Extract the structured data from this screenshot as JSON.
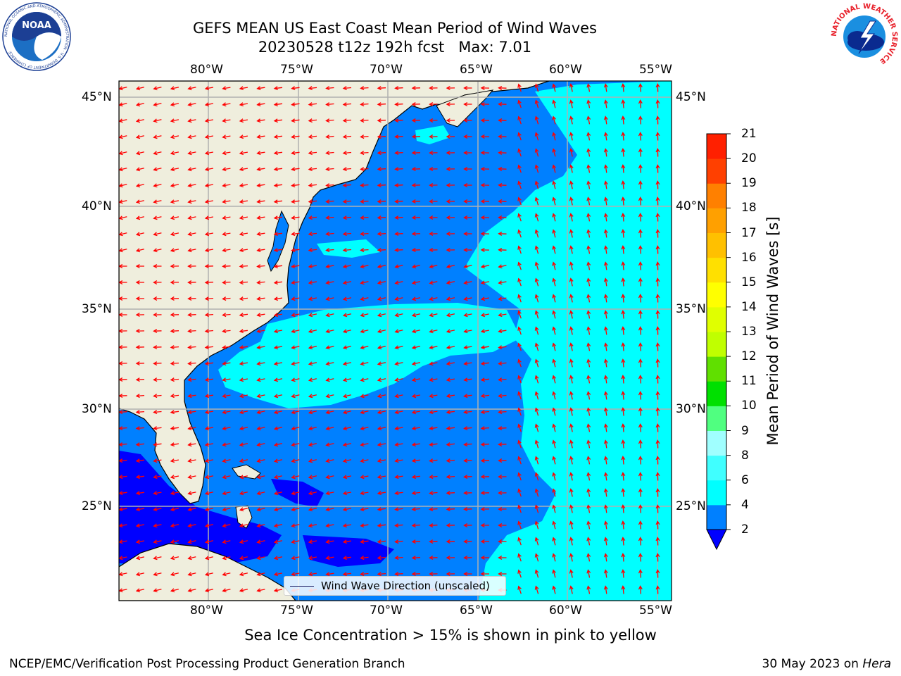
{
  "title": {
    "line1": "GEFS MEAN US East Coast Mean Period of Wind Waves",
    "line2": "20230528 t12z 192h fcst   Max: 7.01"
  },
  "logos": {
    "left": {
      "name": "noaa-logo",
      "text": "NOAA",
      "ring_text": "NATIONAL OCEANIC AND ATMOSPHERIC ADMINISTRATION · U.S. DEPARTMENT OF COMMERCE"
    },
    "right": {
      "name": "nws-logo",
      "ring_text": "NATIONAL WEATHER SERVICE"
    }
  },
  "map": {
    "lon_ticks": [
      "80°W",
      "75°W",
      "70°W",
      "65°W",
      "60°W",
      "55°W"
    ],
    "lat_ticks": [
      "45°N",
      "40°N",
      "35°N",
      "30°N",
      "25°N"
    ],
    "lon_values": [
      -80,
      -75,
      -70,
      -65,
      -60,
      -55
    ],
    "lat_values": [
      45,
      40,
      35,
      30,
      25
    ],
    "lon_range": [
      -85,
      -54.2
    ],
    "lat_range": [
      20.5,
      45.8
    ],
    "colors": {
      "land": "#efeedd",
      "coast": "#000000",
      "grid": "#b0b0b0",
      "arrow": "#ff0000",
      "period_2_4": "#0080ff",
      "period_4_6": "#00ffff",
      "period_6_8": "#40ffff",
      "period_below_2": "#0000ff"
    }
  },
  "colorbar": {
    "label": "Mean Period of Wind Waves [s]",
    "ticks": [
      "2",
      "4",
      "6",
      "8",
      "9",
      "10",
      "11",
      "12",
      "13",
      "14",
      "15",
      "16",
      "17",
      "18",
      "19",
      "20",
      "21"
    ],
    "colors": [
      "#0080ff",
      "#00ffff",
      "#40ffff",
      "#a0ffff",
      "#50ff80",
      "#00e000",
      "#60e000",
      "#c0ff00",
      "#e0ff00",
      "#ffff00",
      "#ffe000",
      "#ffc000",
      "#ffa000",
      "#ff8000",
      "#ff4000",
      "#ff2000",
      "#ff0000"
    ],
    "under_color": "#0000ff"
  },
  "legend": {
    "label": "Wind Wave Direction (unscaled)"
  },
  "notes": {
    "ice": "Sea Ice Concentration > 15% is shown in pink to yellow",
    "footer_left": "NCEP/EMC/Verification Post Processing Product Generation Branch",
    "footer_date": "30 May 2023 on ",
    "footer_host": "Hera"
  }
}
